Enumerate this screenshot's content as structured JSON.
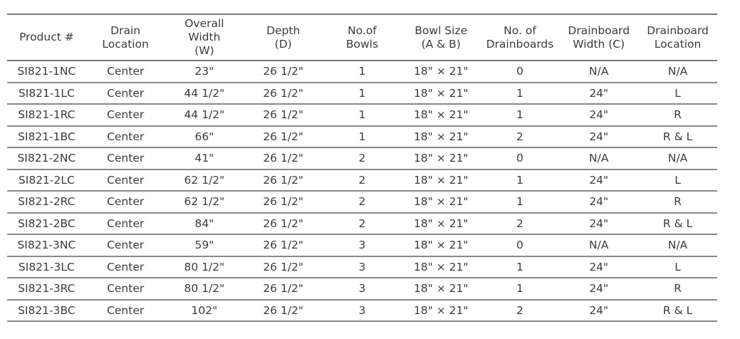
{
  "table": {
    "headers": [
      [
        "Product #"
      ],
      [
        "Drain",
        "Location"
      ],
      [
        "Overall",
        "Width",
        "(W)"
      ],
      [
        "Depth",
        "(D)"
      ],
      [
        "No.of",
        "Bowls"
      ],
      [
        "Bowl Size",
        "(A & B)"
      ],
      [
        "No. of",
        "Drainboards"
      ],
      [
        "Drainboard",
        "Width (C)"
      ],
      [
        "Drainboard",
        "Location"
      ]
    ],
    "rows": [
      [
        "SI821-1NC",
        "Center",
        "23\"",
        "26 1/2\"",
        "1",
        "18\" × 21\"",
        "0",
        "N/A",
        "N/A"
      ],
      [
        "SI821-1LC",
        "Center",
        "44 1/2\"",
        "26 1/2\"",
        "1",
        "18\" × 21\"",
        "1",
        "24\"",
        "L"
      ],
      [
        "SI821-1RC",
        "Center",
        "44 1/2\"",
        "26 1/2\"",
        "1",
        "18\" × 21\"",
        "1",
        "24\"",
        "R"
      ],
      [
        "SI821-1BC",
        "Center",
        "66\"",
        "26 1/2\"",
        "1",
        "18\" × 21\"",
        "2",
        "24\"",
        "R & L"
      ],
      [
        "SI821-2NC",
        "Center",
        "41\"",
        "26 1/2\"",
        "2",
        "18\" × 21\"",
        "0",
        "N/A",
        "N/A"
      ],
      [
        "SI821-2LC",
        "Center",
        "62 1/2\"",
        "26 1/2\"",
        "2",
        "18\" × 21\"",
        "1",
        "24\"",
        "L"
      ],
      [
        "SI821-2RC",
        "Center",
        "62 1/2\"",
        "26 1/2\"",
        "2",
        "18\" × 21\"",
        "1",
        "24\"",
        "R"
      ],
      [
        "SI821-2BC",
        "Center",
        "84\"",
        "26 1/2\"",
        "2",
        "18\" × 21\"",
        "2",
        "24\"",
        "R & L"
      ],
      [
        "SI821-3NC",
        "Center",
        "59\"",
        "26 1/2\"",
        "3",
        "18\" × 21\"",
        "0",
        "N/A",
        "N/A"
      ],
      [
        "SI821-3LC",
        "Center",
        "80 1/2\"",
        "26 1/2\"",
        "3",
        "18\" × 21\"",
        "1",
        "24\"",
        "L"
      ],
      [
        "SI821-3RC",
        "Center",
        "80 1/2\"",
        "26 1/2\"",
        "3",
        "18\" × 21\"",
        "1",
        "24\"",
        "R"
      ],
      [
        "SI821-3BC",
        "Center",
        "102\"",
        "26 1/2\"",
        "3",
        "18\" × 21\"",
        "2",
        "24\"",
        "R & L"
      ]
    ]
  }
}
